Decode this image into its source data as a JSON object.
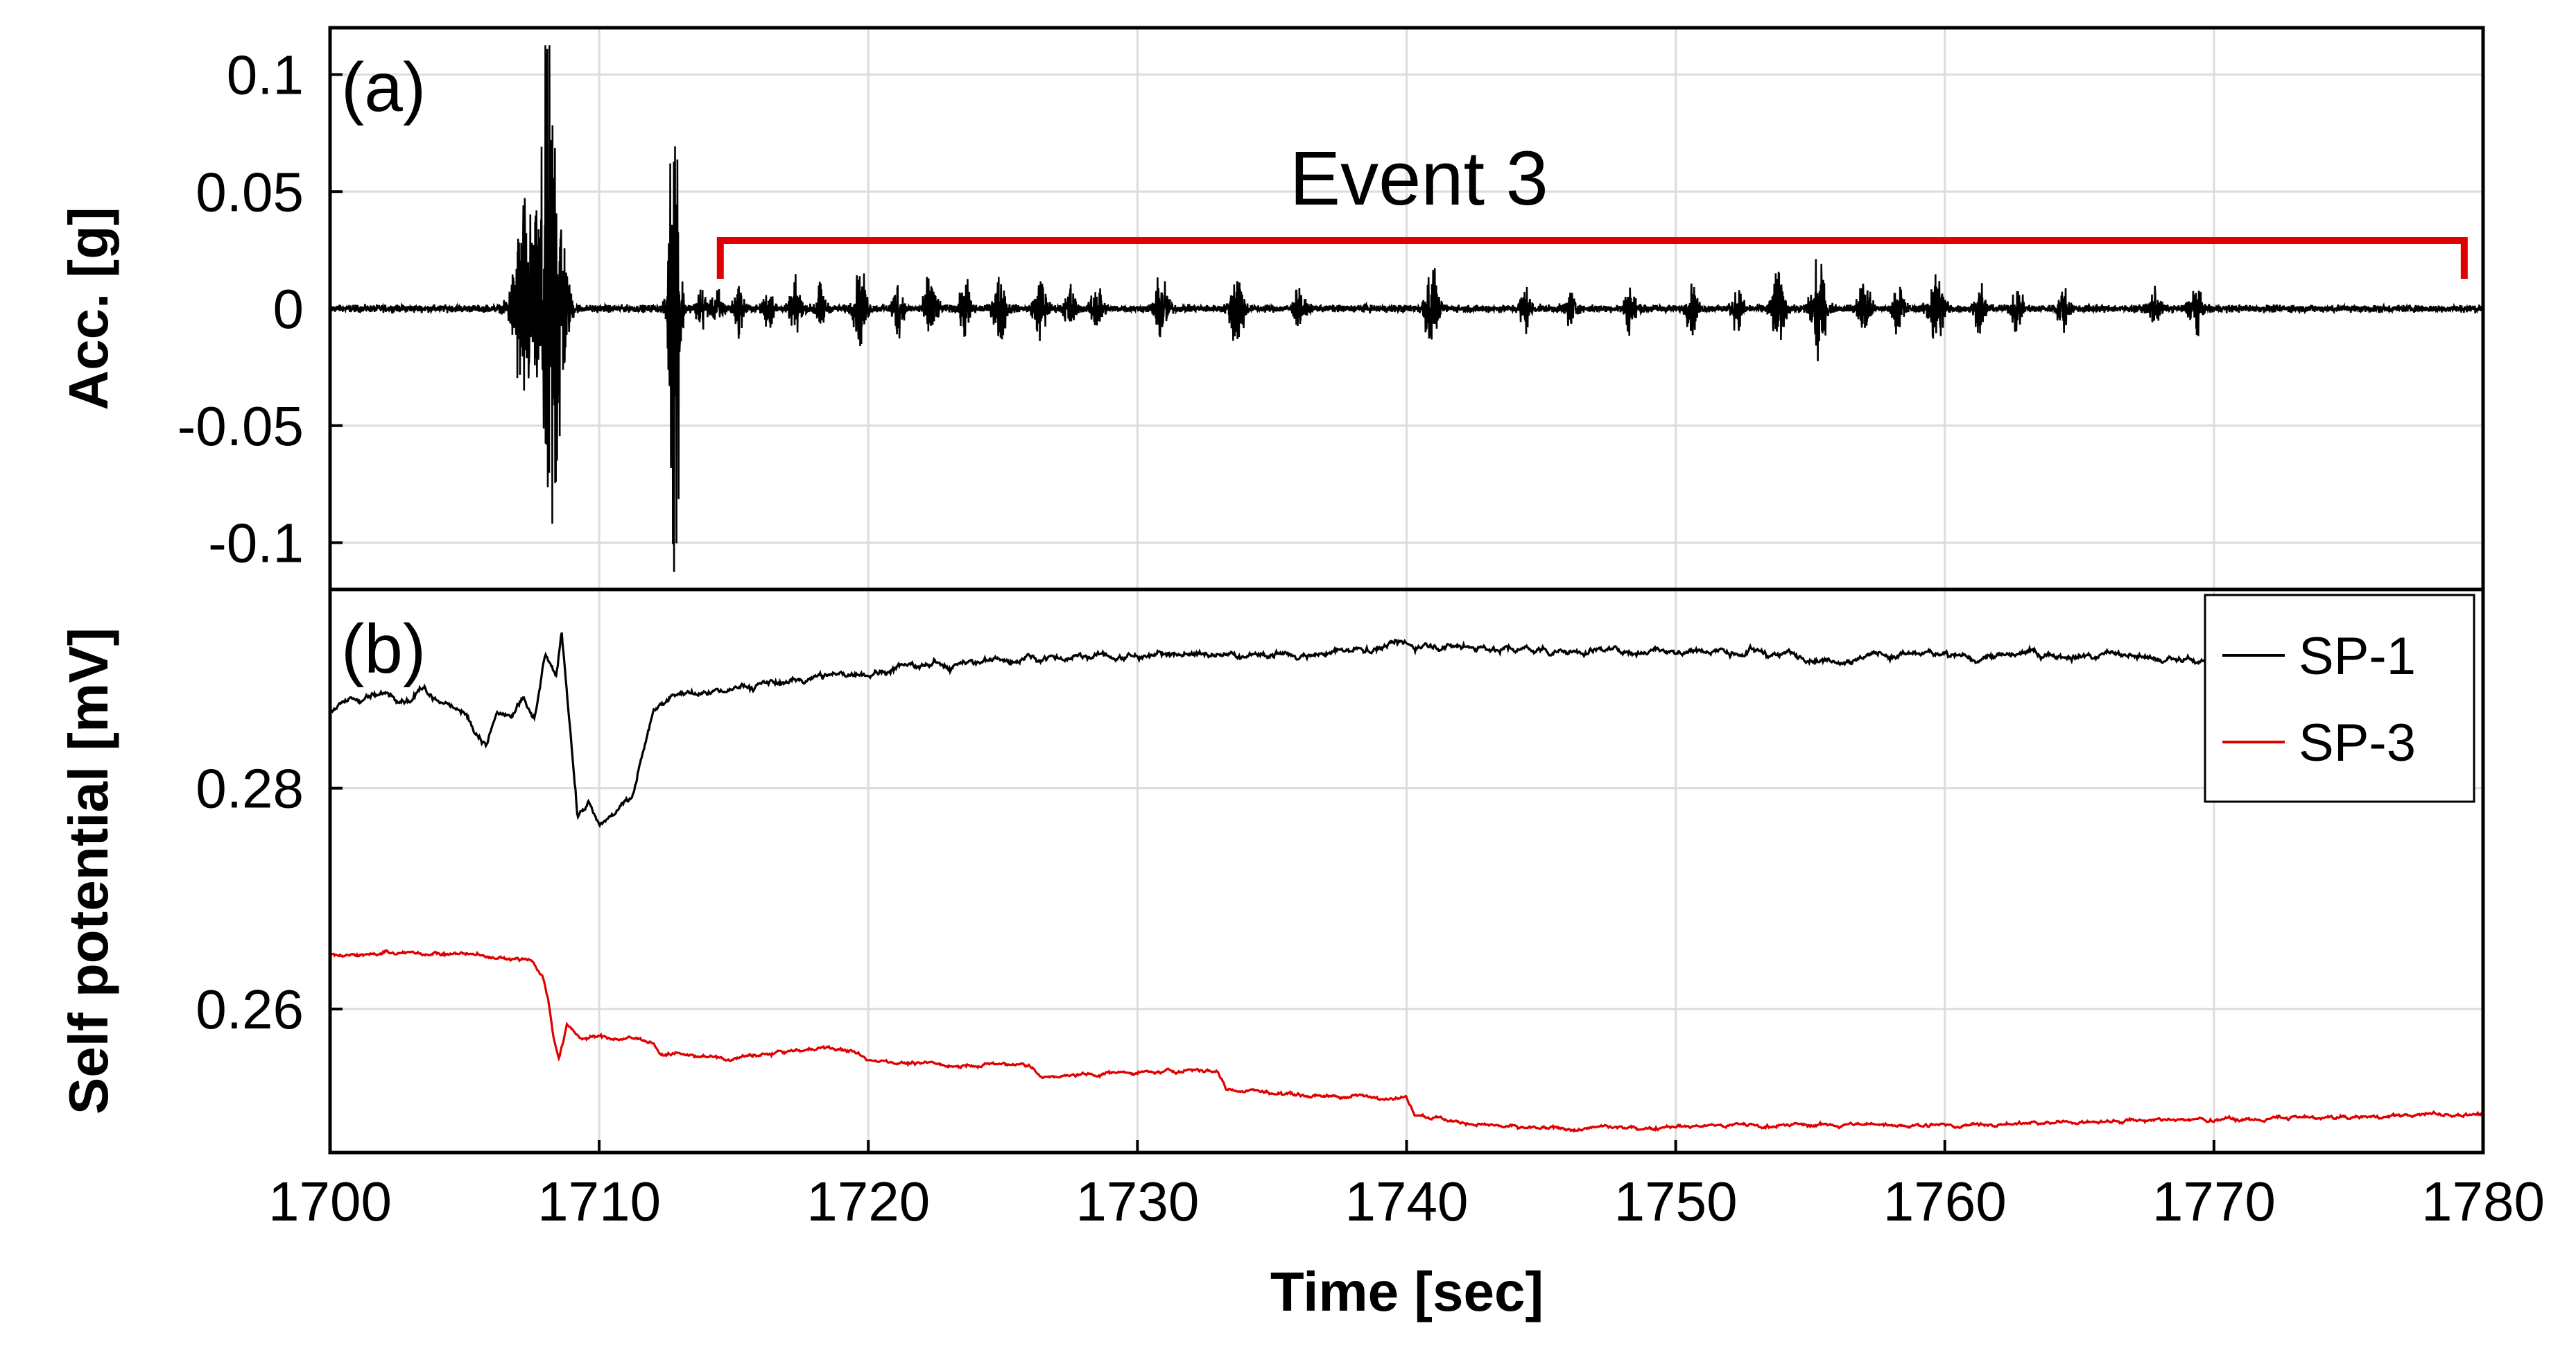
{
  "chart_data": [
    {
      "panel": "(a)",
      "type": "line",
      "ylabel": "Acc. [g]",
      "ylim": [
        -0.12,
        0.12
      ],
      "yticks": [
        "0.1",
        "0.05",
        "0",
        "-0.05",
        "-0.1"
      ],
      "ytick_values": [
        0.1,
        0.05,
        0,
        -0.05,
        -0.1
      ],
      "xlim": [
        1700,
        1780
      ],
      "grid": true,
      "annotation": {
        "text": "Event 3",
        "x_start": 1714.5,
        "x_end": 1779.3,
        "color": "#e00000"
      },
      "series": [
        {
          "color": "#000000",
          "baseline_noise": 0.0015,
          "bursts": [
            {
              "t": 1707.2,
              "amp": 0.045,
              "w": 0.5
            },
            {
              "t": 1708.2,
              "amp": 0.115,
              "w": 0.55
            },
            {
              "t": 1712.8,
              "amp": 0.115,
              "w": 0.25
            },
            {
              "t": 1713.8,
              "amp": 0.008,
              "w": 0.25
            },
            {
              "t": 1714.4,
              "amp": 0.007,
              "w": 0.25
            },
            {
              "t": 1715.2,
              "amp": 0.009,
              "w": 0.25
            },
            {
              "t": 1716.3,
              "amp": 0.008,
              "w": 0.25
            },
            {
              "t": 1717.3,
              "amp": 0.011,
              "w": 0.25
            },
            {
              "t": 1718.2,
              "amp": 0.009,
              "w": 0.25
            },
            {
              "t": 1719.7,
              "amp": 0.015,
              "w": 0.3
            },
            {
              "t": 1721.1,
              "amp": 0.011,
              "w": 0.25
            },
            {
              "t": 1722.3,
              "amp": 0.013,
              "w": 0.3
            },
            {
              "t": 1723.6,
              "amp": 0.012,
              "w": 0.25
            },
            {
              "t": 1724.9,
              "amp": 0.013,
              "w": 0.3
            },
            {
              "t": 1726.4,
              "amp": 0.012,
              "w": 0.3
            },
            {
              "t": 1727.5,
              "amp": 0.009,
              "w": 0.25
            },
            {
              "t": 1728.5,
              "amp": 0.011,
              "w": 0.25
            },
            {
              "t": 1730.9,
              "amp": 0.014,
              "w": 0.3
            },
            {
              "t": 1733.7,
              "amp": 0.018,
              "w": 0.3
            },
            {
              "t": 1736.0,
              "amp": 0.008,
              "w": 0.25
            },
            {
              "t": 1740.9,
              "amp": 0.018,
              "w": 0.3
            },
            {
              "t": 1744.4,
              "amp": 0.009,
              "w": 0.25
            },
            {
              "t": 1746.1,
              "amp": 0.007,
              "w": 0.25
            },
            {
              "t": 1748.3,
              "amp": 0.009,
              "w": 0.25
            },
            {
              "t": 1750.6,
              "amp": 0.01,
              "w": 0.25
            },
            {
              "t": 1752.3,
              "amp": 0.008,
              "w": 0.25
            },
            {
              "t": 1753.8,
              "amp": 0.016,
              "w": 0.3
            },
            {
              "t": 1755.3,
              "amp": 0.018,
              "w": 0.35
            },
            {
              "t": 1757.0,
              "amp": 0.012,
              "w": 0.3
            },
            {
              "t": 1758.3,
              "amp": 0.01,
              "w": 0.25
            },
            {
              "t": 1759.7,
              "amp": 0.016,
              "w": 0.35
            },
            {
              "t": 1761.3,
              "amp": 0.009,
              "w": 0.25
            },
            {
              "t": 1762.7,
              "amp": 0.01,
              "w": 0.25
            },
            {
              "t": 1764.4,
              "amp": 0.008,
              "w": 0.25
            },
            {
              "t": 1767.8,
              "amp": 0.008,
              "w": 0.25
            },
            {
              "t": 1769.3,
              "amp": 0.009,
              "w": 0.3
            }
          ]
        }
      ]
    },
    {
      "panel": "(b)",
      "type": "line",
      "ylabel": "Self potential [mV]",
      "ylim": [
        0.247,
        0.298
      ],
      "yticks": [
        "0.28",
        "0.26"
      ],
      "ytick_values": [
        0.28,
        0.26
      ],
      "xlim": [
        1700,
        1780
      ],
      "xticks": [
        "1700",
        "1710",
        "1720",
        "1730",
        "1740",
        "1750",
        "1760",
        "1770",
        "1780"
      ],
      "xtick_values": [
        1700,
        1710,
        1720,
        1730,
        1740,
        1750,
        1760,
        1770,
        1780
      ],
      "xlabel": "Time [sec]",
      "grid": true,
      "legend_position": "top-right",
      "series": [
        {
          "name": "SP-1",
          "color": "#000000",
          "noise": 0.00035,
          "x": [
            1700,
            1701,
            1702,
            1703,
            1703.5,
            1704,
            1705,
            1705.8,
            1706.2,
            1706.8,
            1707.2,
            1707.6,
            1708,
            1708.4,
            1708.6,
            1708.9,
            1709.2,
            1709.6,
            1710,
            1710.4,
            1710.8,
            1711.2,
            1712,
            1713,
            1715,
            1718,
            1720,
            1722,
            1725,
            1728,
            1730,
            1735,
            1738,
            1740,
            1741,
            1745,
            1750,
            1755,
            1760,
            1765,
            1770,
            1772
          ],
          "y": [
            0.287,
            0.288,
            0.2885,
            0.288,
            0.289,
            0.288,
            0.287,
            0.284,
            0.287,
            0.2865,
            0.288,
            0.286,
            0.292,
            0.29,
            0.294,
            0.286,
            0.2775,
            0.2785,
            0.2765,
            0.2775,
            0.2785,
            0.279,
            0.287,
            0.2885,
            0.289,
            0.29,
            0.2905,
            0.291,
            0.2915,
            0.292,
            0.292,
            0.292,
            0.2925,
            0.293,
            0.293,
            0.2925,
            0.2925,
            0.292,
            0.292,
            0.292,
            0.2915,
            0.292
          ]
        },
        {
          "name": "SP-3",
          "color": "#e00000",
          "noise": 0.0002,
          "x": [
            1700,
            1705,
            1707.5,
            1707.9,
            1708.1,
            1708.3,
            1708.5,
            1708.8,
            1709.3,
            1710,
            1712,
            1712.3,
            1715,
            1718,
            1719,
            1720,
            1723,
            1726,
            1726.5,
            1729,
            1730,
            1732,
            1733,
            1733.3,
            1736,
            1740,
            1740.3,
            1741,
            1743,
            1745,
            1748,
            1750,
            1755,
            1760,
            1765,
            1770,
            1775,
            1780
          ],
          "y": [
            0.265,
            0.265,
            0.2645,
            0.263,
            0.261,
            0.2575,
            0.2555,
            0.2585,
            0.2575,
            0.2575,
            0.2572,
            0.256,
            0.2555,
            0.2565,
            0.2563,
            0.2555,
            0.2548,
            0.255,
            0.2537,
            0.2542,
            0.2542,
            0.2545,
            0.2543,
            0.2528,
            0.2522,
            0.252,
            0.2505,
            0.2502,
            0.2495,
            0.249,
            0.2492,
            0.2495,
            0.2495,
            0.2495,
            0.2498,
            0.25,
            0.2502,
            0.2505
          ]
        }
      ]
    }
  ]
}
